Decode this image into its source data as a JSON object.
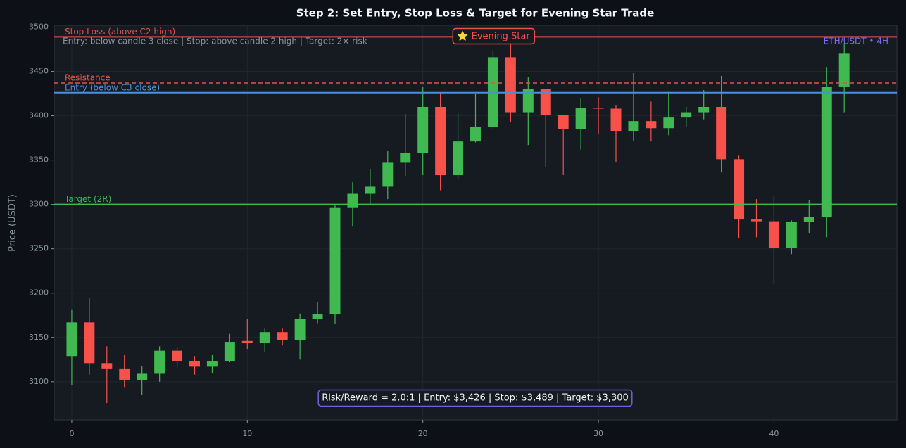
{
  "chart_data": {
    "type": "candlestick",
    "title": "Step 2: Set Entry, Stop Loss & Target for Evening Star Trade",
    "subtitle": "Entry: below candle 3 close | Stop: above candle 2 high | Target: 2× risk",
    "symbol": "ETH/USDT • 4H",
    "y_label": "Price (USDT)",
    "pattern_label": "⭐ Evening Star",
    "summary": "Risk/Reward = 2.0:1 | Entry: $3,426 | Stop: $3,489 | Target: $3,300",
    "up_color": "#3fb950",
    "down_color": "#f85149",
    "x": [
      0,
      1,
      2,
      3,
      4,
      5,
      6,
      7,
      8,
      9,
      10,
      11,
      12,
      13,
      14,
      15,
      16,
      17,
      18,
      19,
      20,
      21,
      22,
      23,
      24,
      25,
      26,
      27,
      28,
      29,
      30,
      31,
      32,
      33,
      34,
      35,
      36,
      37,
      38,
      39,
      40,
      41,
      42,
      43,
      44
    ],
    "open": [
      3129,
      3167,
      3121,
      3115,
      3102,
      3109,
      3135,
      3123,
      3117,
      3123,
      3146,
      3144,
      3156,
      3147,
      3171,
      3176,
      3296,
      3312,
      3320,
      3347,
      3358,
      3410,
      3333,
      3371,
      3387,
      3466,
      3404,
      3430,
      3401,
      3385,
      3409,
      3408,
      3383,
      3394,
      3386,
      3398,
      3404,
      3410,
      3351,
      3283,
      3281,
      3251,
      3280,
      3286,
      3433
    ],
    "high": [
      3181,
      3194,
      3140,
      3130,
      3118,
      3140,
      3139,
      3129,
      3130,
      3154,
      3171,
      3160,
      3160,
      3177,
      3190,
      3300,
      3325,
      3340,
      3360,
      3402,
      3433,
      3426,
      3403,
      3425,
      3474,
      3482,
      3444,
      3430,
      3401,
      3420,
      3421,
      3412,
      3448,
      3416,
      3427,
      3410,
      3429,
      3445,
      3355,
      3306,
      3310,
      3282,
      3305,
      3455,
      3482
    ],
    "low": [
      3096,
      3108,
      3076,
      3094,
      3085,
      3100,
      3116,
      3108,
      3110,
      3122,
      3137,
      3134,
      3141,
      3125,
      3166,
      3165,
      3275,
      3300,
      3306,
      3332,
      3333,
      3316,
      3329,
      3370,
      3385,
      3393,
      3367,
      3342,
      3333,
      3362,
      3380,
      3348,
      3372,
      3371,
      3378,
      3387,
      3396,
      3336,
      3262,
      3263,
      3210,
      3244,
      3268,
      3263,
      3404
    ],
    "close": [
      3167,
      3121,
      3115,
      3102,
      3109,
      3135,
      3123,
      3117,
      3123,
      3145,
      3144,
      3156,
      3147,
      3171,
      3176,
      3296,
      3312,
      3320,
      3347,
      3358,
      3410,
      3333,
      3371,
      3387,
      3466,
      3404,
      3430,
      3401,
      3385,
      3409,
      3408,
      3383,
      3394,
      3386,
      3398,
      3404,
      3410,
      3351,
      3283,
      3281,
      3251,
      3280,
      3286,
      3433,
      3470
    ],
    "lines": [
      {
        "label": "Stop Loss (above C2 high)",
        "value": 3489,
        "color": "#e5534b",
        "style": "solid"
      },
      {
        "label": "Resistance",
        "value": 3437,
        "color": "#e5534b",
        "style": "dashed"
      },
      {
        "label": "Entry (below C3 close)",
        "value": 3426,
        "color": "#4a90e2",
        "style": "solid"
      },
      {
        "label": "Target (2R)",
        "value": 3300,
        "color": "#3fb950",
        "style": "solid"
      }
    ],
    "xlim": [
      -1,
      47
    ],
    "ylim": [
      3057,
      3502
    ],
    "xticks": [
      0,
      10,
      20,
      30,
      40
    ],
    "yticks": [
      3100,
      3150,
      3200,
      3250,
      3300,
      3350,
      3400,
      3450,
      3500
    ],
    "grid": true
  }
}
